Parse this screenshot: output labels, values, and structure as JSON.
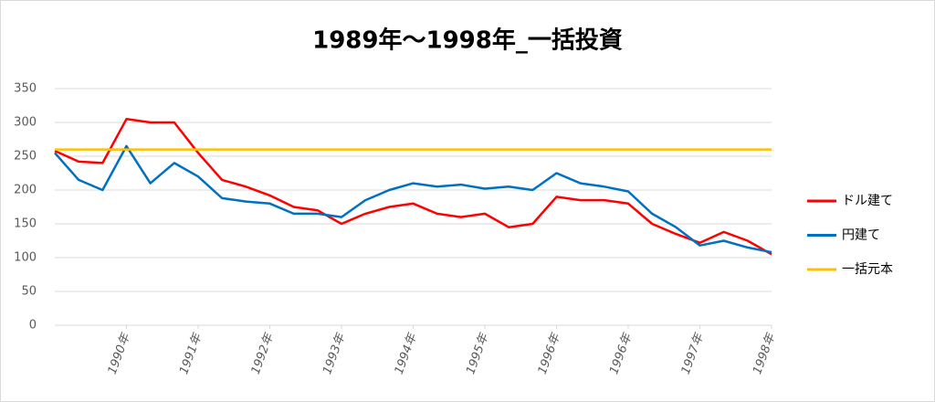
{
  "chart_data": {
    "type": "line",
    "title": "1989年～1998年_一括投資",
    "x": [
      0,
      4,
      8,
      12,
      16,
      20,
      24,
      28,
      32,
      36,
      40,
      44,
      48,
      52,
      56,
      60,
      64,
      68,
      72,
      76,
      80,
      84,
      88,
      92,
      96,
      100,
      104,
      108,
      112,
      116,
      120
    ],
    "series": [
      {
        "name": "ドル建て",
        "color": "#ff0000",
        "values": [
          258,
          242,
          240,
          305,
          300,
          300,
          255,
          215,
          205,
          192,
          175,
          170,
          150,
          165,
          175,
          180,
          165,
          160,
          165,
          145,
          150,
          190,
          185,
          185,
          180,
          150,
          135,
          122,
          138,
          125,
          105
        ]
      },
      {
        "name": "円建て",
        "color": "#0070c0",
        "values": [
          255,
          215,
          200,
          265,
          210,
          240,
          220,
          188,
          183,
          180,
          165,
          165,
          160,
          185,
          200,
          210,
          205,
          208,
          202,
          205,
          200,
          225,
          210,
          205,
          198,
          165,
          145,
          118,
          125,
          115,
          108
        ]
      },
      {
        "name": "一括元本",
        "color": "#ffc000",
        "values": [
          260,
          260,
          260,
          260,
          260,
          260,
          260,
          260,
          260,
          260,
          260,
          260,
          260,
          260,
          260,
          260,
          260,
          260,
          260,
          260,
          260,
          260,
          260,
          260,
          260,
          260,
          260,
          260,
          260,
          260,
          260
        ]
      }
    ],
    "xlim": [
      0,
      120
    ],
    "xticks": [
      {
        "value": 12,
        "label": "1990年"
      },
      {
        "value": 24,
        "label": "1991年"
      },
      {
        "value": 36,
        "label": "1992年"
      },
      {
        "value": 48,
        "label": "1993年"
      },
      {
        "value": 60,
        "label": "1994年"
      },
      {
        "value": 72,
        "label": "1995年"
      },
      {
        "value": 84,
        "label": "1996年"
      },
      {
        "value": 96,
        "label": "1996年"
      },
      {
        "value": 108,
        "label": "1997年"
      },
      {
        "value": 120,
        "label": "1998年"
      }
    ],
    "ylim": [
      0,
      350
    ],
    "yticks": [
      0,
      50,
      100,
      150,
      200,
      250,
      300,
      350
    ],
    "grid": true,
    "legend": "right"
  }
}
